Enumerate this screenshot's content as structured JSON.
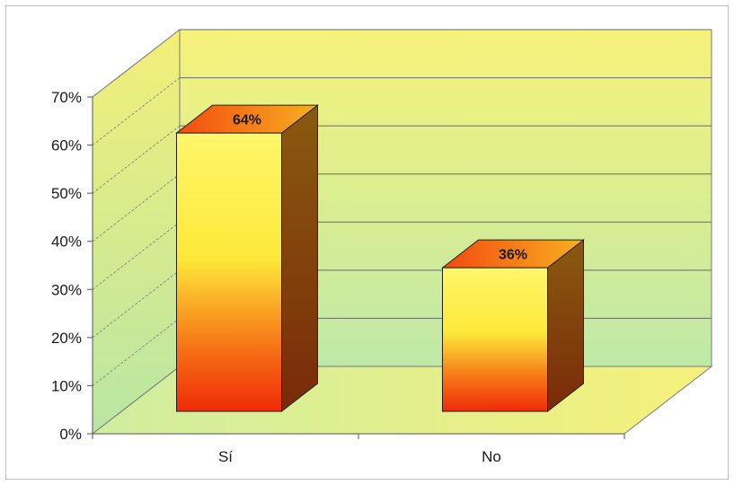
{
  "chart_data": {
    "type": "bar",
    "categories": [
      "Sí",
      "No"
    ],
    "values": [
      64,
      36
    ],
    "data_labels": [
      "64%",
      "36%"
    ],
    "ylim": [
      0,
      70
    ],
    "yticks": [
      "0%",
      "10%",
      "20%",
      "30%",
      "40%",
      "50%",
      "60%",
      "70%"
    ],
    "grid": true,
    "three_d": true
  },
  "colors": {
    "wall_top": "#f6f27a",
    "wall_bottom": "#bfe9a8",
    "floor": "#f3ee7a",
    "bar_top_face": "#f5a21c",
    "bar_front_top": "#fff24a",
    "bar_front_bottom": "#f23a0a",
    "bar_side": "#8a3c0c",
    "grid": "#6d6d6d"
  }
}
